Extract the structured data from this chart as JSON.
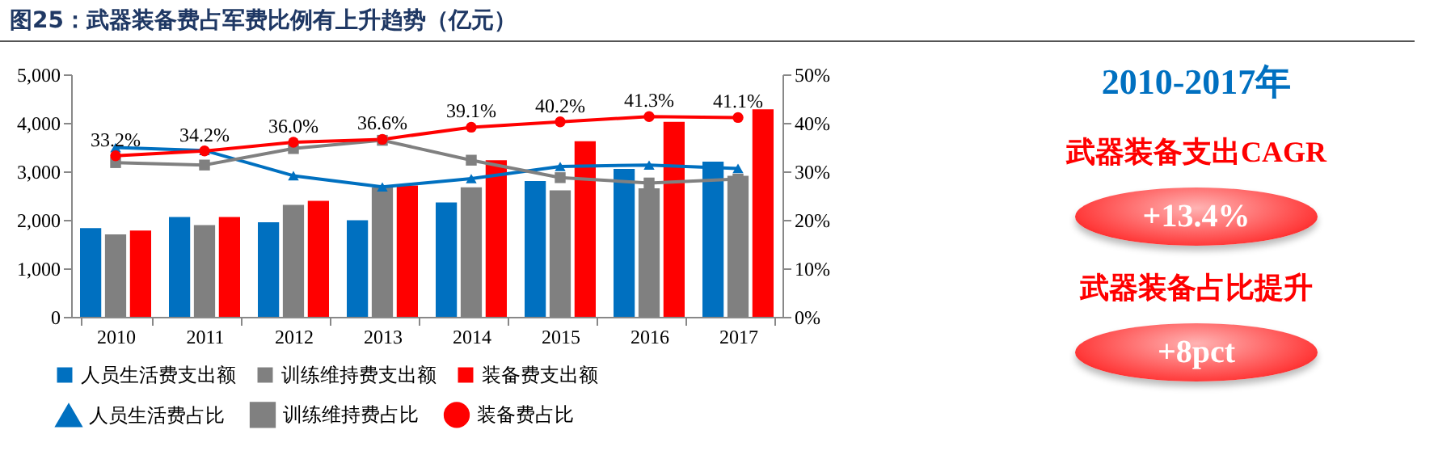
{
  "chart_data": {
    "type": "bar",
    "title": "图25：武器装备费占军费比例有上升趋势（亿元）",
    "categories": [
      "2010",
      "2011",
      "2012",
      "2013",
      "2014",
      "2015",
      "2016",
      "2017"
    ],
    "series": [
      {
        "name": "人员生活费支出额",
        "color": "#0070c0",
        "values": [
          1830,
          2060,
          1950,
          1990,
          2360,
          2800,
          3050,
          3200
        ]
      },
      {
        "name": "训练维持费支出额",
        "color": "#808080",
        "values": [
          1700,
          1890,
          2310,
          2670,
          2670,
          2610,
          2650,
          2910
        ]
      },
      {
        "name": "装备费支出额",
        "color": "#ff0000",
        "values": [
          1780,
          2060,
          2390,
          2710,
          3230,
          3620,
          4020,
          4280
        ]
      },
      {
        "name": "人员生活费占比",
        "type": "line",
        "axis": "y2",
        "marker": "triangle",
        "color": "#0070c0",
        "values": [
          34.9,
          34.3,
          29.1,
          26.8,
          28.5,
          31.0,
          31.3,
          30.6
        ]
      },
      {
        "name": "训练维持费占比",
        "type": "line",
        "axis": "y2",
        "marker": "square",
        "color": "#808080",
        "values": [
          31.8,
          31.3,
          34.7,
          36.4,
          32.3,
          28.7,
          27.6,
          28.4
        ]
      },
      {
        "name": "装备费占比",
        "type": "line",
        "axis": "y2",
        "marker": "circle",
        "color": "#ff0000",
        "values": [
          33.2,
          34.2,
          36.0,
          36.6,
          39.1,
          40.2,
          41.3,
          41.1
        ],
        "value_labels": [
          "33.2%",
          "34.2%",
          "36.0%",
          "36.6%",
          "39.1%",
          "40.2%",
          "41.3%",
          "41.1%"
        ]
      }
    ],
    "ylim": [
      0,
      5000
    ],
    "yticks": [
      {
        "value": 0,
        "label": "0"
      },
      {
        "value": 1000,
        "label": "1,000"
      },
      {
        "value": 2000,
        "label": "2,000"
      },
      {
        "value": 3000,
        "label": "3,000"
      },
      {
        "value": 4000,
        "label": "4,000"
      },
      {
        "value": 5000,
        "label": "5,000"
      }
    ],
    "y2lim": [
      0,
      50
    ],
    "y2ticks": [
      {
        "value": 0,
        "label": "0%"
      },
      {
        "value": 10,
        "label": "10%"
      },
      {
        "value": 20,
        "label": "20%"
      },
      {
        "value": 30,
        "label": "30%"
      },
      {
        "value": 40,
        "label": "40%"
      },
      {
        "value": 50,
        "label": "50%"
      }
    ],
    "legend": "bottom",
    "annotations": [
      "2010-2017年",
      "武器装备支出CAGR",
      "+13.4%",
      "武器装备占比提升",
      "+8pct"
    ]
  }
}
